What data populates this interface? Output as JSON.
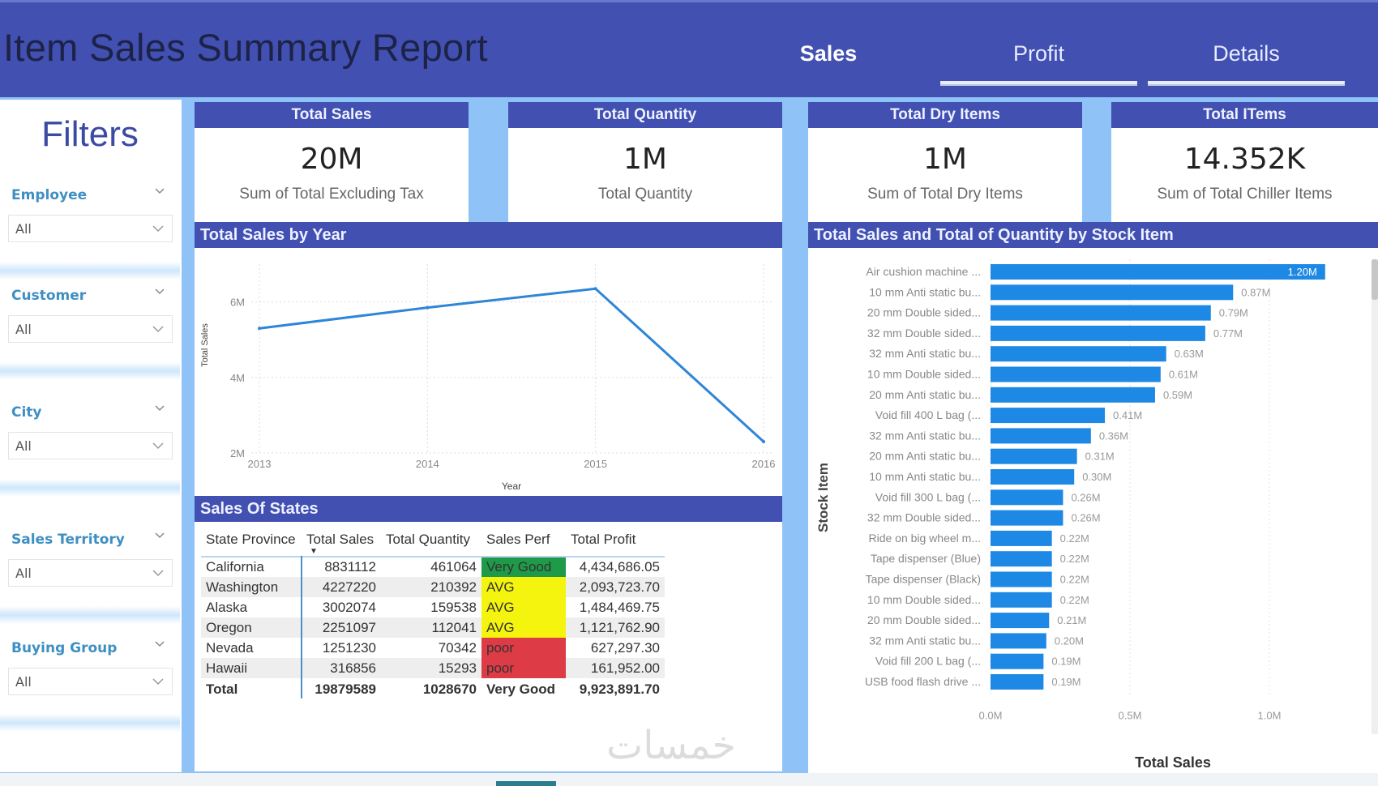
{
  "header": {
    "title": "Item Sales Summary Report",
    "tabs": [
      {
        "label": "Sales",
        "active": true
      },
      {
        "label": "Profit",
        "active": false
      },
      {
        "label": "Details",
        "active": false
      }
    ]
  },
  "filters": {
    "title": "Filters",
    "slicers": [
      {
        "label": "Employee",
        "value": "All"
      },
      {
        "label": "Customer",
        "value": "All"
      },
      {
        "label": "City",
        "value": "All"
      },
      {
        "label": "Sales Territory",
        "value": "All"
      },
      {
        "label": "Buying Group",
        "value": "All"
      }
    ]
  },
  "kpis": [
    {
      "title": "Total Sales",
      "value": "20M",
      "subtitle": "Sum of Total Excluding Tax"
    },
    {
      "title": "Total Quantity",
      "value": "1M",
      "subtitle": "Total Quantity"
    },
    {
      "title": "Total Dry Items",
      "value": "1M",
      "subtitle": "Sum of Total Dry Items"
    },
    {
      "title": "Total ITems",
      "value": "14.352K",
      "subtitle": "Sum of Total Chiller Items"
    }
  ],
  "colors": {
    "brand": "#4150b1",
    "line": "#2f86d6",
    "bar": "#1e88e5",
    "very_good": "#1e9a48",
    "avg": "#f4f40e",
    "poor": "#dd3b45"
  },
  "table": {
    "title": "Sales Of States",
    "columns": [
      "State Province",
      "Total Sales",
      "Total Quantity",
      "Sales Perf",
      "Total Profit"
    ],
    "sorted_column": "Total Sales",
    "rows": [
      {
        "state": "California",
        "sales": "8831112",
        "qty": "461064",
        "perf": "Very Good",
        "perf_level": "very_good",
        "profit": "4,434,686.05"
      },
      {
        "state": "Washington",
        "sales": "4227220",
        "qty": "210392",
        "perf": "AVG",
        "perf_level": "avg",
        "profit": "2,093,723.70"
      },
      {
        "state": "Alaska",
        "sales": "3002074",
        "qty": "159538",
        "perf": "AVG",
        "perf_level": "avg",
        "profit": "1,484,469.75"
      },
      {
        "state": "Oregon",
        "sales": "2251097",
        "qty": "112041",
        "perf": "AVG",
        "perf_level": "avg",
        "profit": "1,121,762.90"
      },
      {
        "state": "Nevada",
        "sales": "1251230",
        "qty": "70342",
        "perf": "poor",
        "perf_level": "poor",
        "profit": "627,297.30"
      },
      {
        "state": "Hawaii",
        "sales": "316856",
        "qty": "15293",
        "perf": "poor",
        "perf_level": "poor",
        "profit": "161,952.00"
      }
    ],
    "total": {
      "state": "Total",
      "sales": "19879589",
      "qty": "1028670",
      "perf": "Very Good",
      "profit": "9,923,891.70"
    }
  },
  "chart_data": [
    {
      "type": "line",
      "title": "Total Sales by Year",
      "xlabel": "Year",
      "ylabel": "Total Sales",
      "x": [
        "2013",
        "2014",
        "2015",
        "2016"
      ],
      "series": [
        {
          "name": "Total Sales",
          "values": [
            5300000,
            5850000,
            6350000,
            2300000
          ]
        }
      ],
      "yticks": [
        {
          "value": 2000000,
          "label": "2M"
        },
        {
          "value": 4000000,
          "label": "4M"
        },
        {
          "value": 6000000,
          "label": "6M"
        }
      ],
      "ylim": [
        2000000,
        7000000
      ],
      "grid": true
    },
    {
      "type": "bar",
      "orientation": "horizontal",
      "title": "Total Sales and Total of Quantity by Stock Item",
      "xlabel": "Total Sales",
      "ylabel": "Stock Item",
      "categories": [
        "Air cushion machine ...",
        "10 mm Anti static bu...",
        "20 mm Double sided...",
        "32 mm Double sided...",
        "32 mm Anti static bu...",
        "10 mm Double sided...",
        "20 mm Anti static bu...",
        "Void fill 400 L bag (...",
        "32 mm Anti static bu...",
        "20 mm Anti static bu...",
        "10 mm Anti static bu...",
        "Void fill 300 L bag (...",
        "32 mm Double sided...",
        "Ride on big wheel m...",
        "Tape dispenser (Blue)",
        "Tape dispenser (Black)",
        "10 mm Double sided...",
        "20 mm Double sided...",
        "32 mm Anti static bu...",
        "Void fill 200 L bag (...",
        "USB food flash drive ..."
      ],
      "values": [
        1.2,
        0.87,
        0.79,
        0.77,
        0.63,
        0.61,
        0.59,
        0.41,
        0.36,
        0.31,
        0.3,
        0.26,
        0.26,
        0.22,
        0.22,
        0.22,
        0.22,
        0.21,
        0.2,
        0.19,
        0.19
      ],
      "value_labels": [
        "1.20M",
        "0.87M",
        "0.79M",
        "0.77M",
        "0.63M",
        "0.61M",
        "0.59M",
        "0.41M",
        "0.36M",
        "0.31M",
        "0.30M",
        "0.26M",
        "0.26M",
        "0.22M",
        "0.22M",
        "0.22M",
        "0.22M",
        "0.21M",
        "0.20M",
        "0.19M",
        "0.19M"
      ],
      "units": "millions",
      "xticks": [
        {
          "value": 0.0,
          "label": "0.0M"
        },
        {
          "value": 0.5,
          "label": "0.5M"
        },
        {
          "value": 1.0,
          "label": "1.0M"
        }
      ],
      "xlim": [
        0,
        1.25
      ],
      "grid": true
    }
  ],
  "watermark": "خمسات"
}
